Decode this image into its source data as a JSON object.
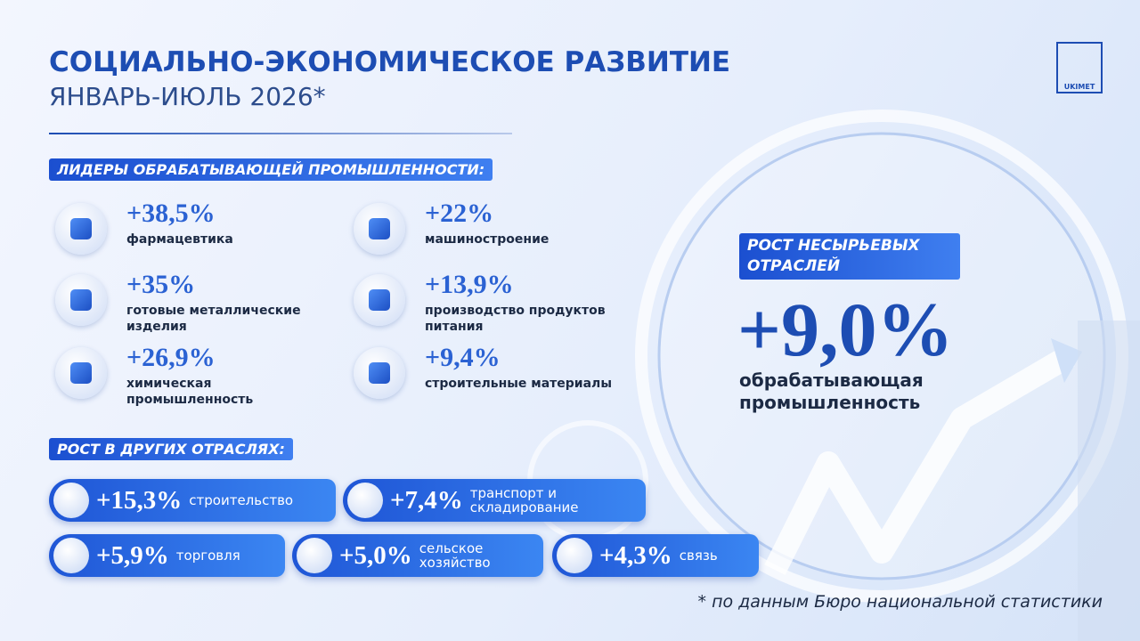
{
  "header": {
    "title": "СОЦИАЛЬНО-ЭКОНОМИЧЕСКОЕ РАЗВИТИЕ",
    "subtitle": "ЯНВАРЬ-ИЮЛЬ 2026*",
    "logo": "UKIMET"
  },
  "manufacturing": {
    "title": "ЛИДЕРЫ ОБРАБАТЫВАЮЩЕЙ ПРОМЫШЛЕННОСТИ:",
    "items": [
      {
        "value": "+38,5%",
        "label": "фармацевтика"
      },
      {
        "value": "+22%",
        "label": "машиностроение"
      },
      {
        "value": "+35%",
        "label": "готовые металлические изделия"
      },
      {
        "value": "+13,9%",
        "label": "производство продуктов питания"
      },
      {
        "value": "+26,9%",
        "label": "химическая промышленность"
      },
      {
        "value": "+9,4%",
        "label": "строительные материалы"
      }
    ]
  },
  "highlight": {
    "tag": "РОСТ НЕСЫРЬЕВЫХ ОТРАСЛЕЙ",
    "value": "+9,0%",
    "label": "обрабатывающая промышленность"
  },
  "other": {
    "title": "РОСТ В ДРУГИХ ОТРАСЛЯХ:",
    "items": [
      {
        "value": "+15,3%",
        "label": "строительство"
      },
      {
        "value": "+7,4%",
        "label": "транспорт и складирование"
      },
      {
        "value": "+5,9%",
        "label": "торговля"
      },
      {
        "value": "+5,0%",
        "label": "сельское хозяйство"
      },
      {
        "value": "+4,3%",
        "label": "связь"
      }
    ]
  },
  "footnote": "* по данным Бюро национальной статистики"
}
